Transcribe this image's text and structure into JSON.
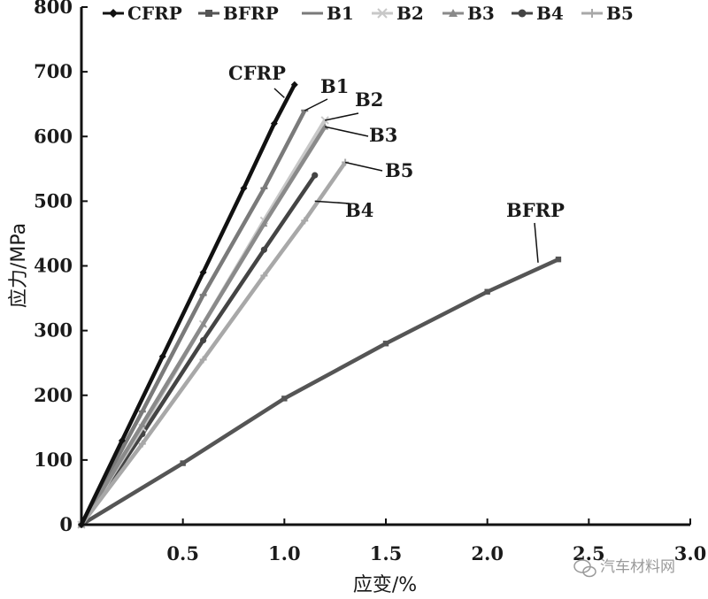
{
  "chart_data": {
    "type": "line",
    "xlabel": "应变/%",
    "ylabel": "应力/MPa",
    "xlim": [
      0,
      3.0
    ],
    "ylim": [
      0,
      800
    ],
    "x_ticks": [
      "0.5",
      "1.0",
      "1.5",
      "2.0",
      "2.5",
      "3.0"
    ],
    "y_ticks": [
      "0",
      "100",
      "200",
      "300",
      "400",
      "500",
      "600",
      "700",
      "800"
    ],
    "legend_position": "top",
    "series": [
      {
        "name": "CFRP",
        "color": "#111111",
        "marker": "diamond",
        "x": [
          0,
          0.2,
          0.4,
          0.6,
          0.8,
          0.95,
          1.05
        ],
        "y": [
          0,
          130,
          260,
          390,
          520,
          620,
          680
        ]
      },
      {
        "name": "BFRP",
        "color": "#555555",
        "marker": "square",
        "x": [
          0,
          0.5,
          1.0,
          1.5,
          2.0,
          2.35
        ],
        "y": [
          0,
          95,
          195,
          280,
          360,
          410
        ]
      },
      {
        "name": "B1",
        "color": "#7a7a7a",
        "marker": "dash",
        "x": [
          0,
          0.3,
          0.6,
          0.9,
          1.1
        ],
        "y": [
          0,
          175,
          355,
          520,
          640
        ]
      },
      {
        "name": "B2",
        "color": "#c8c8c8",
        "marker": "x",
        "x": [
          0,
          0.3,
          0.6,
          0.9,
          1.2
        ],
        "y": [
          0,
          150,
          310,
          470,
          625
        ]
      },
      {
        "name": "B3",
        "color": "#8a8a8a",
        "marker": "triangle",
        "x": [
          0,
          0.3,
          0.6,
          0.9,
          1.2
        ],
        "y": [
          0,
          155,
          310,
          465,
          615
        ]
      },
      {
        "name": "B4",
        "color": "#444444",
        "marker": "circle",
        "x": [
          0,
          0.3,
          0.6,
          0.9,
          1.15
        ],
        "y": [
          0,
          140,
          285,
          425,
          540
        ]
      },
      {
        "name": "B5",
        "color": "#a8a8a8",
        "marker": "plus",
        "x": [
          0,
          0.3,
          0.6,
          0.9,
          1.1,
          1.3
        ],
        "y": [
          0,
          125,
          255,
          385,
          470,
          560
        ]
      }
    ],
    "annotations": [
      {
        "text": "CFRP",
        "x": 1.0,
        "y": 660
      },
      {
        "text": "B1",
        "x": 1.1,
        "y": 640
      },
      {
        "text": "B2",
        "x": 1.2,
        "y": 625
      },
      {
        "text": "B3",
        "x": 1.2,
        "y": 615
      },
      {
        "text": "B5",
        "x": 1.3,
        "y": 560
      },
      {
        "text": "B4",
        "x": 1.15,
        "y": 500
      },
      {
        "text": "BFRP",
        "x": 2.25,
        "y": 405
      }
    ]
  },
  "watermark": "汽车材料网"
}
